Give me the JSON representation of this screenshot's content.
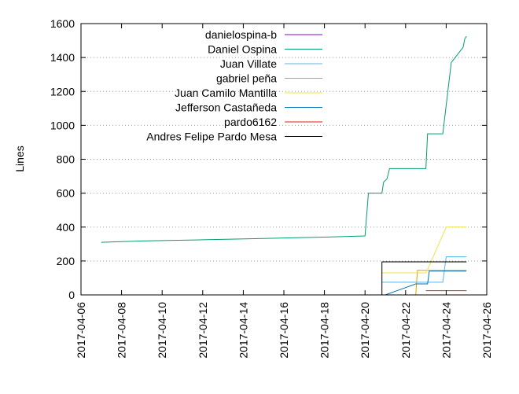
{
  "chart_data": {
    "type": "line",
    "title": "",
    "xlabel": "",
    "ylabel": "Lines",
    "xlim": [
      "2017-04-06",
      "2017-04-26"
    ],
    "ylim": [
      0,
      1600
    ],
    "x_ticks": [
      "2017-04-06",
      "2017-04-08",
      "2017-04-10",
      "2017-04-12",
      "2017-04-14",
      "2017-04-16",
      "2017-04-18",
      "2017-04-20",
      "2017-04-22",
      "2017-04-24",
      "2017-04-26"
    ],
    "y_ticks": [
      0,
      200,
      400,
      600,
      800,
      1000,
      1200,
      1400,
      1600
    ],
    "grid": "y-dotted",
    "legend_position": "top-left",
    "series": [
      {
        "name": "danielospina-b",
        "color": "#9400d3",
        "points": []
      },
      {
        "name": "Daniel Ospina",
        "color": "#009e73",
        "points": [
          [
            "2017-04-07 00:00",
            310
          ],
          [
            "2017-04-09 00:00",
            318
          ],
          [
            "2017-04-12 00:00",
            325
          ],
          [
            "2017-04-15 00:00",
            333
          ],
          [
            "2017-04-18 00:00",
            341
          ],
          [
            "2017-04-20 00:00",
            348
          ],
          [
            "2017-04-20 04:00",
            600
          ],
          [
            "2017-04-20 20:00",
            600
          ],
          [
            "2017-04-20 22:00",
            665
          ],
          [
            "2017-04-21 02:00",
            685
          ],
          [
            "2017-04-21 05:00",
            745
          ],
          [
            "2017-04-23 00:00",
            745
          ],
          [
            "2017-04-23 02:00",
            950
          ],
          [
            "2017-04-23 20:00",
            950
          ],
          [
            "2017-04-24 06:00",
            1370
          ],
          [
            "2017-04-24 20:00",
            1460
          ],
          [
            "2017-04-24 22:00",
            1510
          ],
          [
            "2017-04-25 00:00",
            1525
          ]
        ]
      },
      {
        "name": "Juan Villate",
        "color": "#56b4e9",
        "points": [
          [
            "2017-04-20 20:00",
            75
          ],
          [
            "2017-04-23 20:00",
            75
          ],
          [
            "2017-04-24 00:00",
            225
          ],
          [
            "2017-04-25 00:00",
            225
          ]
        ]
      },
      {
        "name": "gabriel peña",
        "color": "#e69f00",
        "points": [
          [
            "2017-04-22 12:00",
            0
          ],
          [
            "2017-04-22 14:00",
            145
          ],
          [
            "2017-04-25 00:00",
            145
          ]
        ]
      },
      {
        "name": "Juan Camilo Mantilla",
        "color": "#f0e442",
        "points": [
          [
            "2017-04-20 20:00",
            130
          ],
          [
            "2017-04-23 00:00",
            130
          ],
          [
            "2017-04-23 02:00",
            150
          ],
          [
            "2017-04-24 00:00",
            400
          ],
          [
            "2017-04-25 00:00",
            400
          ]
        ]
      },
      {
        "name": "Jefferson Castañeda",
        "color": "#0072b2",
        "points": [
          [
            "2017-04-21 00:00",
            0
          ],
          [
            "2017-04-22 12:00",
            65
          ],
          [
            "2017-04-23 02:00",
            65
          ],
          [
            "2017-04-23 04:00",
            140
          ],
          [
            "2017-04-25 00:00",
            140
          ]
        ]
      },
      {
        "name": "pardo6162",
        "color": "#e51e10",
        "points": [
          [
            "2017-04-23 00:00",
            25
          ],
          [
            "2017-04-25 00:00",
            25
          ]
        ]
      },
      {
        "name": "Andres Felipe Pardo Mesa",
        "color": "#000000",
        "points": [
          [
            "2017-04-20 20:00",
            0
          ],
          [
            "2017-04-20 20:00",
            195
          ],
          [
            "2017-04-25 00:00",
            195
          ]
        ]
      }
    ]
  }
}
